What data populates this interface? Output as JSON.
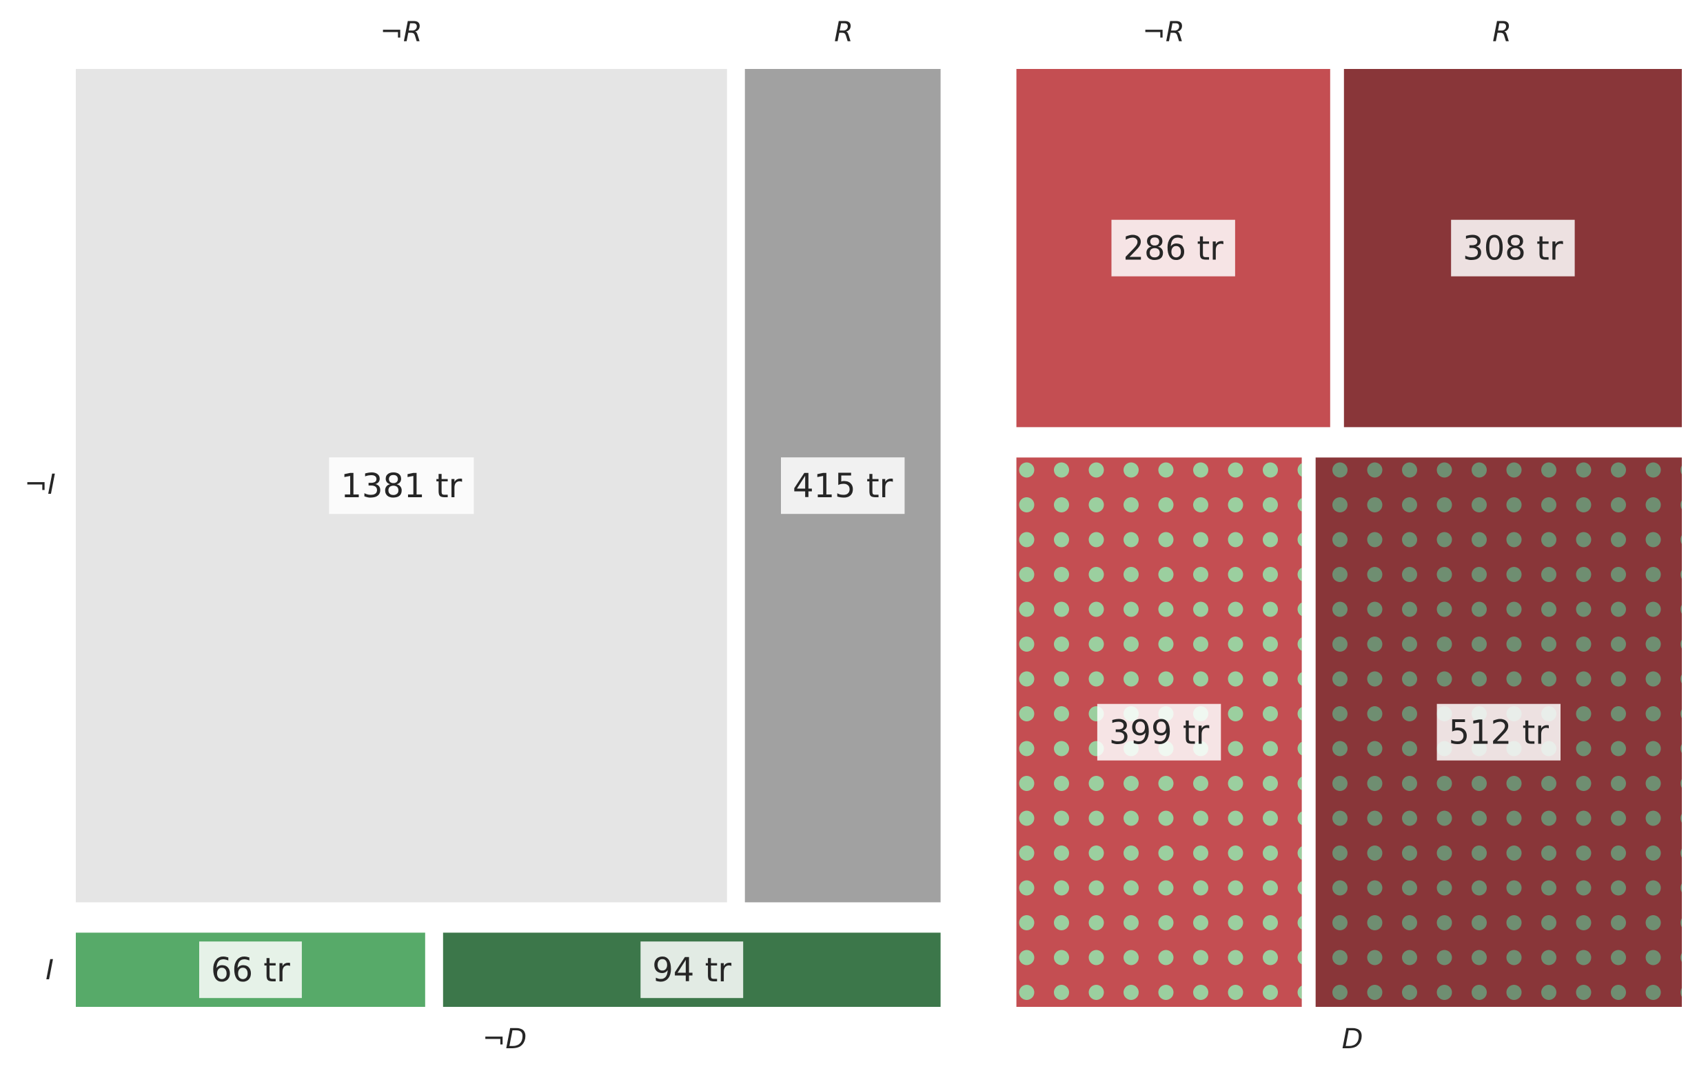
{
  "chart_data": {
    "type": "mosaic",
    "title": "",
    "variables": {
      "D": [
        "¬D",
        "D"
      ],
      "I": [
        "¬I",
        "I"
      ],
      "R": [
        "¬R",
        "R"
      ]
    },
    "unit_suffix": " tr",
    "cells": [
      {
        "D": "¬D",
        "I": "¬I",
        "R": "¬R",
        "value": 1381,
        "label": "1381 tr",
        "color": "#e5e5e5",
        "pattern": "none"
      },
      {
        "D": "¬D",
        "I": "¬I",
        "R": "R",
        "value": 415,
        "label": "415 tr",
        "color": "#a1a1a1",
        "pattern": "none"
      },
      {
        "D": "¬D",
        "I": "I",
        "R": "¬R",
        "value": 66,
        "label": "66 tr",
        "color": "#57aa69",
        "pattern": "none"
      },
      {
        "D": "¬D",
        "I": "I",
        "R": "R",
        "value": 94,
        "label": "94 tr",
        "color": "#3c774a",
        "pattern": "none"
      },
      {
        "D": "D",
        "I": "¬I",
        "R": "¬R",
        "value": 286,
        "label": "286 tr",
        "color": "#c44e52",
        "pattern": "none"
      },
      {
        "D": "D",
        "I": "¬I",
        "R": "R",
        "value": 308,
        "label": "308 tr",
        "color": "#893639",
        "pattern": "none"
      },
      {
        "D": "D",
        "I": "I",
        "R": "¬R",
        "value": 399,
        "label": "399 tr",
        "color": "#c44e52",
        "pattern": "dots",
        "dot_color": "#9bcf9f"
      },
      {
        "D": "D",
        "I": "I",
        "R": "R",
        "value": 512,
        "label": "512 tr",
        "color": "#893639",
        "pattern": "dots",
        "dot_color": "#6f8e71"
      }
    ],
    "labels": {
      "notD": "¬D",
      "D": "D",
      "notI": "¬I",
      "I": "I",
      "notR": "¬R",
      "R": "R"
    }
  }
}
